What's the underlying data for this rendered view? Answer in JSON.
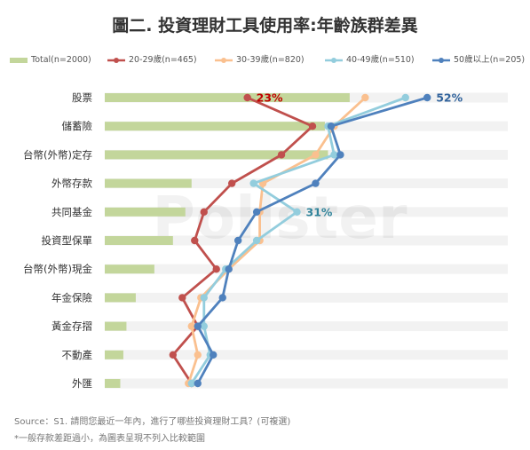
{
  "chart_data": {
    "type": "bar",
    "title": "圖二. 投資理財工具使用率:年齡族群差異",
    "categories": [
      "股票",
      "儲蓄險",
      "台幣(外幣)定存",
      "外幣存款",
      "共同基金",
      "投資型保單",
      "台幣(外幣)現金",
      "年金保險",
      "黃金存摺",
      "不動產",
      "外匯"
    ],
    "xlim": [
      0,
      65
    ],
    "grid": false,
    "legend_position": "top",
    "series": [
      {
        "name": "Total(n=2000)",
        "kind": "bar",
        "color": "#c3d69b",
        "values": [
          39.5,
          35.5,
          36,
          14,
          13,
          11,
          8,
          5,
          3.5,
          3,
          2.5
        ]
      },
      {
        "name": "20-29歲(n=465)",
        "kind": "line",
        "color": "#c0504d",
        "values": [
          23,
          33.5,
          28.5,
          20.5,
          16,
          14.5,
          18,
          12.5,
          15,
          11,
          14
        ]
      },
      {
        "name": "30-39歲(n=820)",
        "kind": "line",
        "color": "#fac08f",
        "values": [
          42,
          37,
          34,
          25.5,
          25,
          25,
          20,
          15.5,
          14,
          15,
          13.5
        ]
      },
      {
        "name": "40-49歲(n=510)",
        "kind": "line",
        "color": "#93cddd",
        "values": [
          48.5,
          36,
          37,
          24,
          31,
          24.5,
          19.5,
          16,
          16,
          17,
          14
        ]
      },
      {
        "name": "50歲以上(n=205)",
        "kind": "line",
        "color": "#4f81bd",
        "values": [
          52,
          36.5,
          38,
          34,
          24.5,
          21.5,
          20,
          19,
          15,
          17.5,
          15
        ]
      }
    ],
    "annotations": [
      {
        "text": "23%",
        "series": 1,
        "category": 0,
        "color": "#c00000"
      },
      {
        "text": "52%",
        "series": 4,
        "category": 0,
        "color": "#31639c"
      },
      {
        "text": "31%",
        "series": 3,
        "category": 4,
        "color": "#31849b"
      }
    ]
  },
  "source": "Source：S1. 請問您最近一年內，進行了哪些投資理財工具？(可複選)",
  "footnote": "*一般存款差距過小，為圖表呈現不列入比較範圍",
  "watermark": "Pollster"
}
